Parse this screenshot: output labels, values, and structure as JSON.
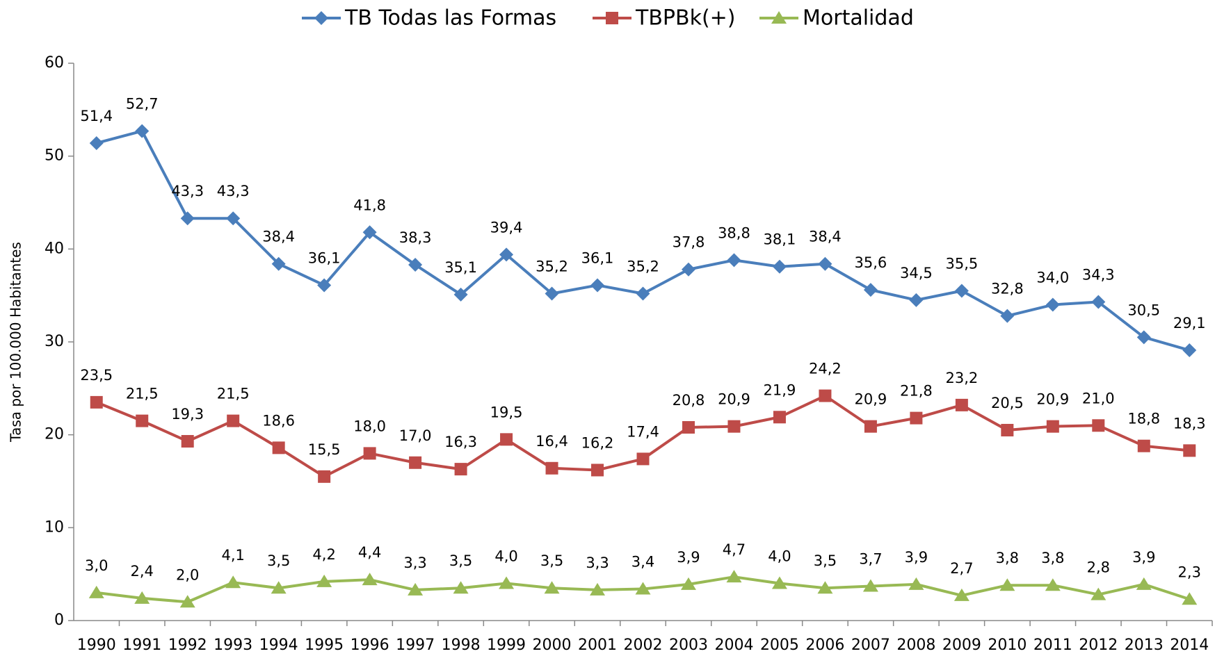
{
  "chart_data": {
    "type": "line",
    "y_axis_label": "Tasa por 100.000 Habitantes",
    "categories": [
      "1990",
      "1991",
      "1992",
      "1993",
      "1994",
      "1995",
      "1996",
      "1997",
      "1998",
      "1999",
      "2000",
      "2001",
      "2002",
      "2003",
      "2004",
      "2005",
      "2006",
      "2007",
      "2008",
      "2009",
      "2010",
      "2011",
      "2012",
      "2013",
      "2014"
    ],
    "series": [
      {
        "name": "TB Todas las Formas",
        "color": "#4a7ebb",
        "marker": "diamond",
        "values": [
          51.4,
          52.7,
          43.3,
          43.3,
          38.4,
          36.1,
          41.8,
          38.3,
          35.1,
          39.4,
          35.2,
          36.1,
          35.2,
          37.8,
          38.8,
          38.1,
          38.4,
          35.6,
          34.5,
          35.5,
          32.8,
          34.0,
          34.3,
          30.5,
          29.1
        ],
        "value_labels": [
          "51,4",
          "52,7",
          "43,3",
          "43,3",
          "38,4",
          "36,1",
          "41,8",
          "38,3",
          "35,1",
          "39,4",
          "35,2",
          "36,1",
          "35,2",
          "37,8",
          "38,8",
          "38,1",
          "38,4",
          "35,6",
          "34,5",
          "35,5",
          "32,8",
          "34,0",
          "34,3",
          "30,5",
          "29,1"
        ]
      },
      {
        "name": "TBPBk(+)",
        "color": "#be4b48",
        "marker": "square",
        "values": [
          23.5,
          21.5,
          19.3,
          21.5,
          18.6,
          15.5,
          18.0,
          17.0,
          16.3,
          19.5,
          16.4,
          16.2,
          17.4,
          20.8,
          20.9,
          21.9,
          24.2,
          20.9,
          21.8,
          23.2,
          20.5,
          20.9,
          21.0,
          18.8,
          18.3
        ],
        "value_labels": [
          "23,5",
          "21,5",
          "19,3",
          "21,5",
          "18,6",
          "15,5",
          "18,0",
          "17,0",
          "16,3",
          "19,5",
          "16,4",
          "16,2",
          "17,4",
          "20,8",
          "20,9",
          "21,9",
          "24,2",
          "20,9",
          "21,8",
          "23,2",
          "20,5",
          "20,9",
          "21,0",
          "18,8",
          "18,3"
        ]
      },
      {
        "name": "Mortalidad",
        "color": "#98b954",
        "marker": "triangle",
        "values": [
          3.0,
          2.4,
          2.0,
          4.1,
          3.5,
          4.2,
          4.4,
          3.3,
          3.5,
          4.0,
          3.5,
          3.3,
          3.4,
          3.9,
          4.7,
          4.0,
          3.5,
          3.7,
          3.9,
          2.7,
          3.8,
          3.8,
          2.8,
          3.9,
          2.3
        ],
        "value_labels": [
          "3,0",
          "2,4",
          "2,0",
          "4,1",
          "3,5",
          "4,2",
          "4,4",
          "3,3",
          "3,5",
          "4,0",
          "3,5",
          "3,3",
          "3,4",
          "3,9",
          "4,7",
          "4,0",
          "3,5",
          "3,7",
          "3,9",
          "2,7",
          "3,8",
          "3,8",
          "2,8",
          "3,9",
          "2,3"
        ]
      }
    ],
    "ylim": [
      0,
      60
    ],
    "yticks": [
      0,
      10,
      20,
      30,
      40,
      50,
      60
    ],
    "grid": false,
    "legend": "top"
  }
}
